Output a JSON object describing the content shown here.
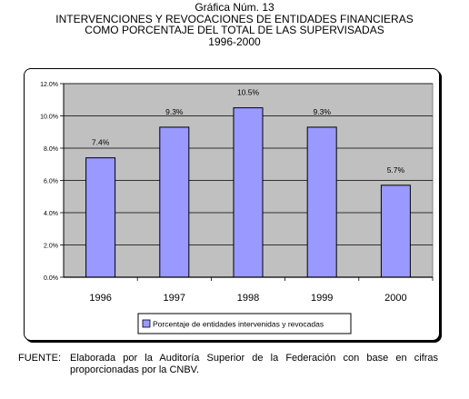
{
  "header": {
    "line1": "Gráfica Núm. 13",
    "line2": "INTERVENCIONES Y REVOCACIONES DE ENTIDADES FINANCIERAS",
    "line3": "COMO PORCENTAJE DEL TOTAL DE LAS SUPERVISADAS",
    "line4": "1996-2000"
  },
  "chart_data": {
    "type": "bar",
    "categories": [
      "1996",
      "1997",
      "1998",
      "1999",
      "2000"
    ],
    "series": [
      {
        "name": "Porcentaje de entidades intervenidas y revocadas",
        "values": [
          7.4,
          9.3,
          10.5,
          9.3,
          5.7
        ]
      }
    ],
    "data_labels": [
      "7.4%",
      "9.3%",
      "10.5%",
      "9.3%",
      "5.7%"
    ],
    "y_ticks": [
      0,
      2,
      4,
      6,
      8,
      10,
      12
    ],
    "y_tick_labels": [
      "0.0%",
      "2.0%",
      "4.0%",
      "6.0%",
      "8.0%",
      "10.0%",
      "12.0%"
    ],
    "ylim": [
      0,
      12
    ],
    "grid": true,
    "legend_position": "bottom",
    "colors": {
      "bar": "#9999ff",
      "plot_bg": "#c0c0c0",
      "bar_stroke": "#000000"
    }
  },
  "source": {
    "label": "FUENTE:",
    "text": "Elaborada por la Auditoría Superior de la Federación con base en cifras proporcionadas por la CNBV."
  }
}
